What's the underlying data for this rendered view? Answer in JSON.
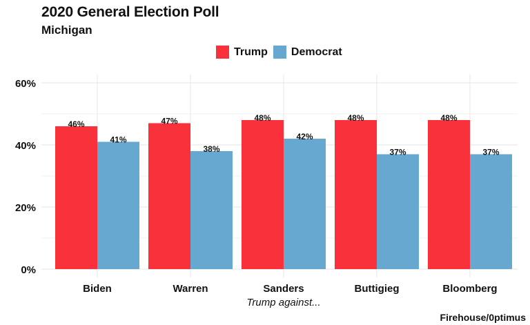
{
  "chart_data": {
    "type": "bar",
    "title": "2020 General Election Poll",
    "subtitle": "Michigan",
    "categories": [
      "Biden",
      "Warren",
      "Sanders",
      "Buttigieg",
      "Bloomberg"
    ],
    "series": [
      {
        "name": "Trump",
        "color": "#F8313A",
        "values": [
          46,
          47,
          48,
          48,
          48
        ],
        "labels": [
          "46%",
          "47%",
          "48%",
          "48%",
          "48%"
        ]
      },
      {
        "name": "Democrat",
        "color": "#66A8CF",
        "values": [
          41,
          38,
          42,
          37,
          37
        ],
        "labels": [
          "41%",
          "38%",
          "42%",
          "37%",
          "37%"
        ]
      }
    ],
    "xlabel": "Trump against...",
    "ylabel": "",
    "ylim": [
      0,
      60
    ],
    "yticks": [
      0,
      20,
      40,
      60
    ],
    "ytick_labels": [
      "0%",
      "20%",
      "40%",
      "60%"
    ],
    "grid": true,
    "legend_position": "top-center",
    "caption": "Firehouse/0ptimus"
  }
}
